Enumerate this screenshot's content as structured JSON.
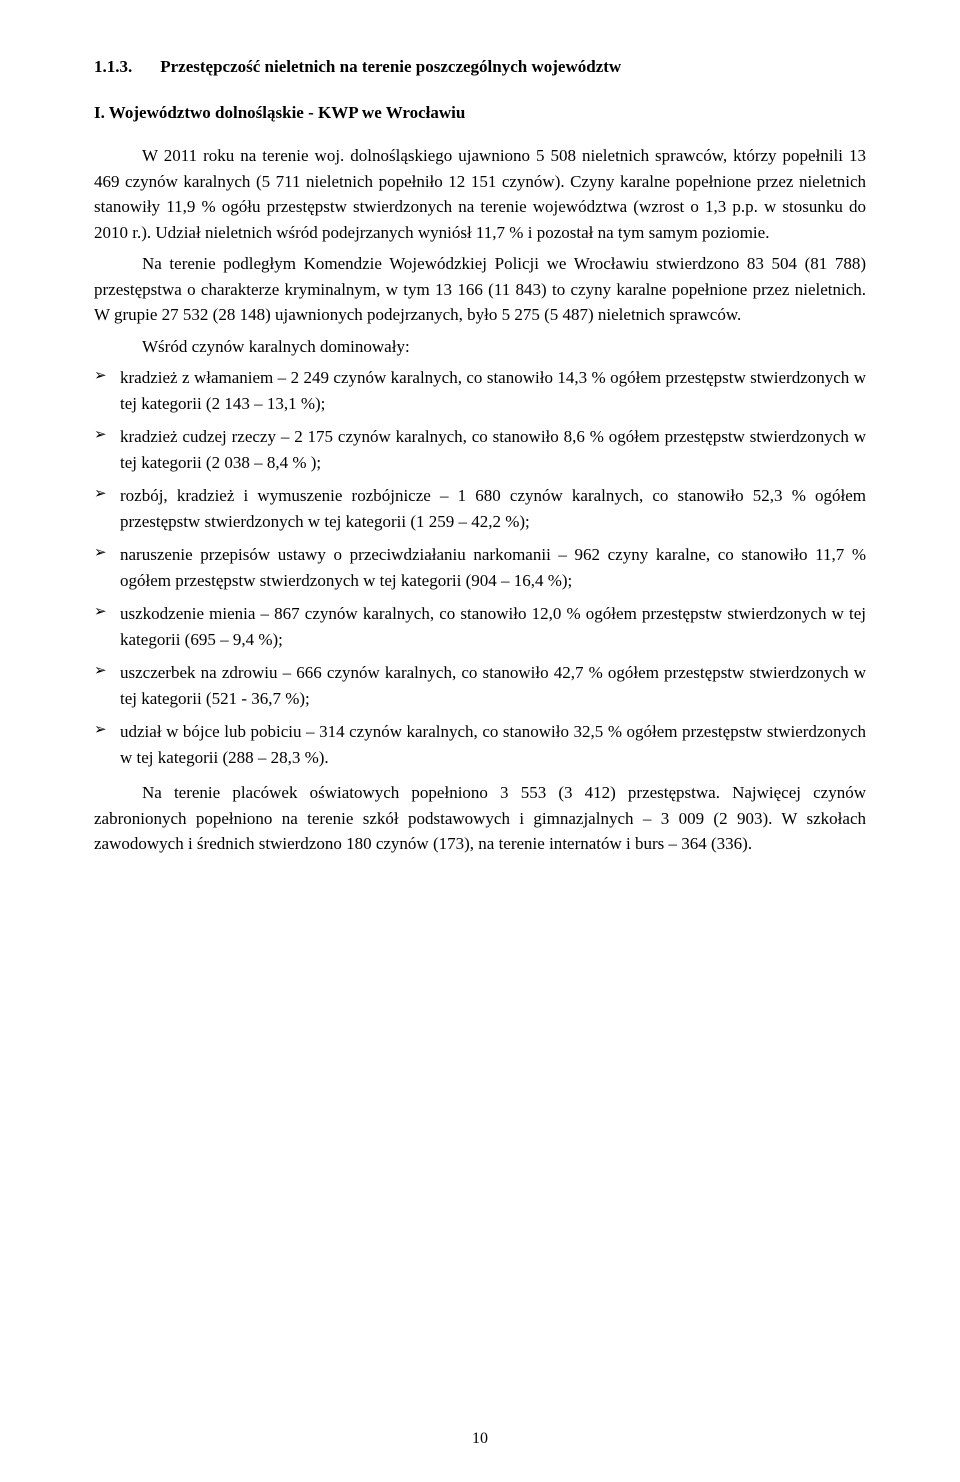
{
  "heading": {
    "number": "1.1.3.",
    "title": "Przestępczość nieletnich na terenie poszczególnych województw"
  },
  "subheading": "I. Województwo dolnośląskie - KWP we Wrocławiu",
  "paragraphs": {
    "p1": "W 2011 roku na terenie woj. dolnośląskiego ujawniono 5 508 nieletnich sprawców, którzy popełnili 13 469 czynów karalnych (5 711 nieletnich popełniło 12 151 czynów). Czyny karalne popełnione przez nieletnich stanowiły 11,9 % ogółu przestępstw stwierdzonych na terenie województwa (wzrost o 1,3 p.p. w stosunku do 2010 r.). Udział nieletnich wśród podejrzanych wyniósł 11,7 % i pozostał na tym samym poziomie.",
    "p2": "Na terenie podległym Komendzie Wojewódzkiej Policji we Wrocławiu stwierdzono 83 504 (81 788) przestępstwa o charakterze kryminalnym, w tym 13 166 (11 843) to czyny karalne popełnione przez nieletnich. W grupie 27 532 (28 148) ujawnionych podejrzanych, było 5 275 (5 487) nieletnich sprawców.",
    "p3": "Wśród czynów karalnych dominowały:",
    "p4": "Na terenie placówek oświatowych popełniono 3 553 (3 412) przestępstwa. Najwięcej czynów zabronionych popełniono na terenie szkół podstawowych i gimnazjalnych – 3 009 (2 903). W szkołach zawodowych i średnich stwierdzono 180 czynów (173), na terenie internatów i burs – 364 (336)."
  },
  "bullets": [
    "kradzież z włamaniem – 2 249 czynów karalnych, co stanowiło 14,3 % ogółem przestępstw stwierdzonych w tej kategorii (2 143 – 13,1 %);",
    "kradzież cudzej rzeczy – 2 175 czynów karalnych, co stanowiło 8,6 % ogółem przestępstw stwierdzonych w tej kategorii (2 038 – 8,4 % );",
    "rozbój, kradzież i wymuszenie rozbójnicze – 1 680 czynów karalnych, co stanowiło 52,3 % ogółem przestępstw stwierdzonych w tej kategorii (1 259 – 42,2 %);",
    "naruszenie przepisów ustawy o przeciwdziałaniu narkomanii – 962 czyny karalne, co stanowiło 11,7 % ogółem przestępstw stwierdzonych w tej kategorii (904 – 16,4 %);",
    "uszkodzenie mienia – 867 czynów karalnych, co stanowiło 12,0 % ogółem przestępstw stwierdzonych w tej kategorii (695 – 9,4 %);",
    "uszczerbek na zdrowiu – 666 czynów karalnych, co stanowiło 42,7 % ogółem przestępstw stwierdzonych w tej kategorii (521 - 36,7 %);",
    "udział w bójce lub pobiciu – 314 czynów karalnych, co stanowiło 32,5 % ogółem przestępstw stwierdzonych w tej kategorii (288 – 28,3 %)."
  ],
  "pageNumber": "10"
}
